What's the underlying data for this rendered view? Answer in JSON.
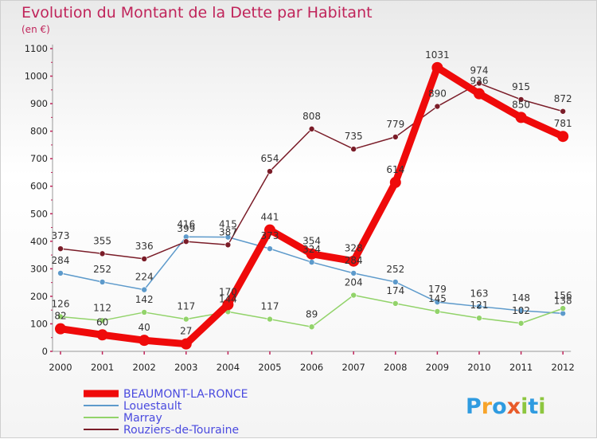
{
  "colors": {
    "title": "#c0245a",
    "legend_text": "#4a4adf"
  },
  "logo_text": [
    "P",
    "r",
    "o",
    "x",
    "i",
    "t",
    "i"
  ],
  "logo_colors": [
    "#2f9be0",
    "#f7a42b",
    "#2f9be0",
    "#e85b2a",
    "#8dc63f",
    "#2f9be0",
    "#8dc63f"
  ],
  "chart_data": {
    "type": "line",
    "title": "Evolution du Montant de la Dette par Habitant",
    "subtitle": "(en €)",
    "xlabel": "",
    "ylabel": "",
    "x": [
      "2000",
      "2001",
      "2002",
      "2003",
      "2004",
      "2005",
      "2006",
      "2007",
      "2008",
      "2009",
      "2010",
      "2011",
      "2012"
    ],
    "ylim": [
      0,
      1100
    ],
    "yticks": [
      0,
      100,
      200,
      300,
      400,
      500,
      600,
      700,
      800,
      900,
      1000,
      1100
    ],
    "grid": false,
    "legend_position": "bottom-left",
    "series": [
      {
        "name": "BEAUMONT-LA-RONCE",
        "color": "#ef0a0a",
        "values": [
          82,
          60,
          40,
          27,
          170,
          441,
          354,
          328,
          614,
          1031,
          936,
          850,
          781
        ]
      },
      {
        "name": "Louestault",
        "color": "#5d9acb",
        "values": [
          284,
          252,
          224,
          416,
          415,
          373,
          324,
          284,
          252,
          179,
          163,
          148,
          138
        ]
      },
      {
        "name": "Marray",
        "color": "#92d36a",
        "values": [
          126,
          112,
          142,
          117,
          144,
          117,
          89,
          204,
          174,
          145,
          121,
          102,
          156
        ]
      },
      {
        "name": "Rouziers-de-Touraine",
        "color": "#7a1c28",
        "values": [
          373,
          355,
          336,
          399,
          387,
          654,
          808,
          735,
          779,
          890,
          974,
          915,
          872
        ]
      }
    ]
  }
}
